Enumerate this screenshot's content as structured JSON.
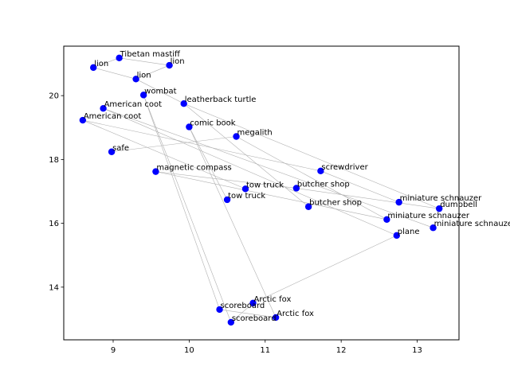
{
  "chart_data": {
    "type": "scatter",
    "title": "",
    "xlabel": "",
    "ylabel": "",
    "xlim": [
      8.35,
      13.55
    ],
    "ylim": [
      12.35,
      21.55
    ],
    "xticks": [
      9,
      10,
      11,
      12,
      13
    ],
    "yticks": [
      14,
      16,
      18,
      20
    ],
    "grid": false,
    "point_color": "#0000ff",
    "line_color": "#b0b0b0",
    "points": [
      {
        "label": "Tibetan mastiff",
        "x": 9.08,
        "y": 21.18
      },
      {
        "label": "lion",
        "x": 9.74,
        "y": 20.95
      },
      {
        "label": "lion",
        "x": 8.74,
        "y": 20.88
      },
      {
        "label": "lion",
        "x": 9.3,
        "y": 20.52
      },
      {
        "label": "wombat",
        "x": 9.4,
        "y": 20.02
      },
      {
        "label": "leatherback turtle",
        "x": 9.93,
        "y": 19.75
      },
      {
        "label": "American coot",
        "x": 8.87,
        "y": 19.6
      },
      {
        "label": "American coot",
        "x": 8.6,
        "y": 19.23
      },
      {
        "label": "comic book",
        "x": 10.0,
        "y": 19.02
      },
      {
        "label": "megalith",
        "x": 10.62,
        "y": 18.72
      },
      {
        "label": "safe",
        "x": 8.98,
        "y": 18.24
      },
      {
        "label": "screwdriver",
        "x": 11.73,
        "y": 17.64
      },
      {
        "label": "magnetic compass",
        "x": 9.56,
        "y": 17.62
      },
      {
        "label": "butcher shop",
        "x": 11.41,
        "y": 17.1
      },
      {
        "label": "tow truck",
        "x": 10.74,
        "y": 17.08
      },
      {
        "label": "tow truck",
        "x": 10.5,
        "y": 16.74
      },
      {
        "label": "miniature schnauzer",
        "x": 12.76,
        "y": 16.66
      },
      {
        "label": "butcher shop",
        "x": 11.57,
        "y": 16.52
      },
      {
        "label": "dumbbell",
        "x": 13.29,
        "y": 16.46
      },
      {
        "label": "miniature schnauzer",
        "x": 12.6,
        "y": 16.12
      },
      {
        "label": "miniature schnauzer",
        "x": 13.21,
        "y": 15.86
      },
      {
        "label": "plane",
        "x": 12.73,
        "y": 15.62
      },
      {
        "label": "Arctic fox",
        "x": 10.84,
        "y": 13.5
      },
      {
        "label": "scoreboard",
        "x": 10.4,
        "y": 13.3
      },
      {
        "label": "Arctic fox",
        "x": 11.14,
        "y": 13.05
      },
      {
        "label": "scoreboard",
        "x": 10.55,
        "y": 12.9
      }
    ],
    "edges": [
      [
        0,
        1
      ],
      [
        1,
        3
      ],
      [
        3,
        2
      ],
      [
        2,
        0
      ],
      [
        3,
        5
      ],
      [
        4,
        23
      ],
      [
        4,
        25
      ],
      [
        5,
        18
      ],
      [
        5,
        17
      ],
      [
        6,
        21
      ],
      [
        6,
        20
      ],
      [
        7,
        11
      ],
      [
        7,
        14
      ],
      [
        8,
        24
      ],
      [
        8,
        15
      ],
      [
        9,
        10
      ],
      [
        9,
        19
      ],
      [
        11,
        16
      ],
      [
        12,
        13
      ],
      [
        13,
        18
      ],
      [
        21,
        22
      ],
      [
        22,
        25
      ],
      [
        23,
        24
      ],
      [
        12,
        19
      ]
    ]
  }
}
